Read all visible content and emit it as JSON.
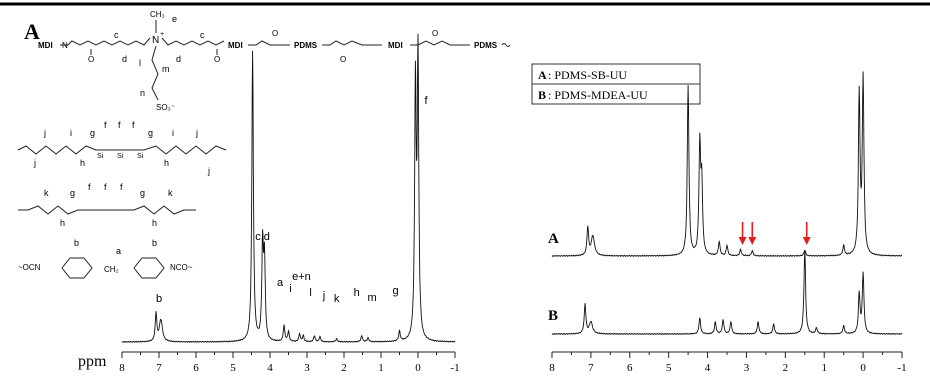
{
  "figure": {
    "panel_left_label": "A",
    "top_rule": true
  },
  "chemistry": {
    "backbone": {
      "segments": [
        "MDI",
        "PDMS",
        "MDI",
        "PDMS"
      ],
      "methyl_label": "CH₃",
      "site_labels": [
        "c",
        "d",
        "e",
        "c",
        "d",
        "l",
        "m",
        "n"
      ],
      "charge_plus": "+",
      "sulfonate": "SO₃⁻",
      "atoms": [
        "N",
        "H",
        "O",
        "C"
      ]
    },
    "pdms_ether_labels": [
      "j",
      "i",
      "g",
      "f",
      "f",
      "f",
      "g",
      "i",
      "j",
      "h",
      "h",
      "j",
      "j"
    ],
    "pdms_amine_labels": [
      "k",
      "g",
      "f",
      "f",
      "f",
      "g",
      "k",
      "h",
      "h"
    ],
    "mdi_labels": [
      "a",
      "b",
      "b"
    ],
    "mdi_left_text": "~OCN",
    "mdi_right_text": "NCO~",
    "mdi_ch2": "CH₂"
  },
  "chart_data": [
    {
      "type": "line",
      "title": "",
      "xlabel": "ppm",
      "xlim": [
        8,
        -1
      ],
      "x_reversed": true,
      "x_ticks": [
        8,
        7,
        6,
        5,
        4,
        3,
        2,
        1,
        0,
        -1
      ],
      "series": [
        {
          "name": "",
          "peaks_ppm": [
            7.05,
            6.95,
            4.45,
            4.2,
            4.15,
            3.62,
            3.5,
            3.2,
            3.1,
            2.8,
            2.65,
            2.2,
            1.5,
            1.35,
            0.5,
            0.07,
            0.0
          ]
        }
      ],
      "annotations": [
        {
          "text": "b",
          "ppm": 7.0
        },
        {
          "text": "c,d",
          "ppm": 4.2
        },
        {
          "text": "a",
          "ppm": 3.62
        },
        {
          "text": "i",
          "ppm": 3.5
        },
        {
          "text": "e+n",
          "ppm": 3.15
        },
        {
          "text": "l",
          "ppm": 2.85
        },
        {
          "text": "j",
          "ppm": 2.65
        },
        {
          "text": "k",
          "ppm": 2.2
        },
        {
          "text": "h",
          "ppm": 1.55
        },
        {
          "text": "m",
          "ppm": 1.35
        },
        {
          "text": "g",
          "ppm": 0.5
        },
        {
          "text": "f",
          "ppm": 0.0
        }
      ]
    },
    {
      "type": "line",
      "title": "",
      "xlabel": "",
      "xlim": [
        8,
        -1
      ],
      "x_reversed": true,
      "x_ticks": [
        8,
        7,
        6,
        5,
        4,
        3,
        2,
        1,
        0,
        -1
      ],
      "legend": [
        {
          "key": "A",
          "text": ": PDMS-SB-UU"
        },
        {
          "key": "B",
          "text": ": PDMS-MDEA-UU"
        }
      ],
      "legend_position": "top-left",
      "series": [
        {
          "name": "A",
          "peaks_ppm": [
            7.05,
            6.95,
            4.5,
            4.2,
            3.7,
            3.5,
            3.15,
            2.85,
            1.5,
            0.5,
            0.1,
            0.0
          ]
        },
        {
          "name": "B",
          "peaks_ppm": [
            7.15,
            7.0,
            4.2,
            3.8,
            3.6,
            3.4,
            2.7,
            2.3,
            1.5,
            1.2,
            0.5,
            0.1,
            0.0
          ]
        }
      ],
      "arrows_ppm": [
        3.1,
        2.85,
        1.45
      ],
      "arrow_color": "#e02020"
    }
  ]
}
